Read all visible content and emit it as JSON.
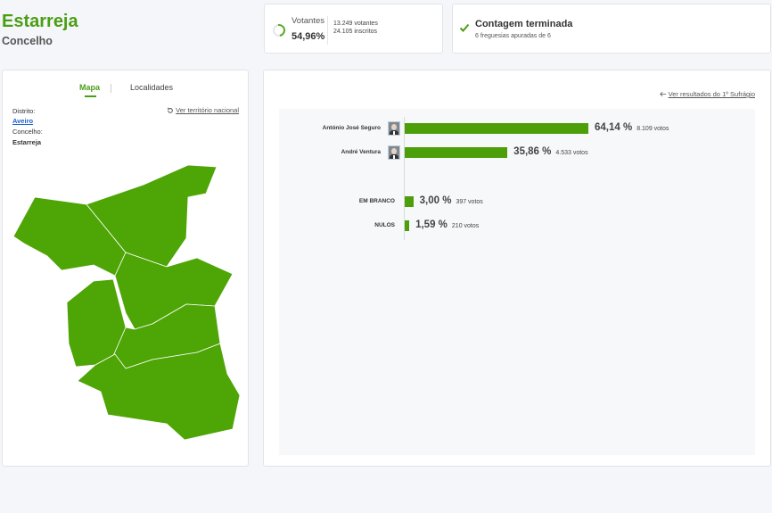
{
  "header": {
    "title": "Estarreja",
    "subtitle": "Concelho"
  },
  "votantes": {
    "label": "Votantes",
    "percent": "54,96%",
    "progress": 0.5496,
    "votantes_line": "13.249 votantes",
    "inscritos_line": "24.105 inscritos"
  },
  "contagem": {
    "title": "Contagem terminada",
    "subtitle": "6 freguesias apuradas de 6"
  },
  "left_panel": {
    "tabs": [
      {
        "label": "Mapa",
        "active": true
      },
      {
        "label": "Localidades",
        "active": false
      }
    ],
    "distrito_label": "Distrito:",
    "distrito_value": "Aveiro",
    "concelho_label": "Concelho:",
    "concelho_value": "Estarreja",
    "national_link": "Ver território nacional",
    "map_color": "#4ea506"
  },
  "results": {
    "back_link": "Ver resultados do 1º Sufrágio",
    "bar_color": "#4c9f09",
    "rows": [
      {
        "label": "António José Seguro",
        "percent_value": 64.14,
        "percent": "64,14 %",
        "votes": "8.109 votos",
        "photo": true
      },
      {
        "label": "André Ventura",
        "percent_value": 35.86,
        "percent": "35,86 %",
        "votes": "4.533 votos",
        "photo": true
      },
      {
        "label": "EM BRANCO",
        "percent_value": 3.0,
        "percent": "3,00 %",
        "votes": "397 votos",
        "photo": false
      },
      {
        "label": "NULOS",
        "percent_value": 1.59,
        "percent": "1,59 %",
        "votes": "210 votos",
        "photo": false
      }
    ]
  }
}
